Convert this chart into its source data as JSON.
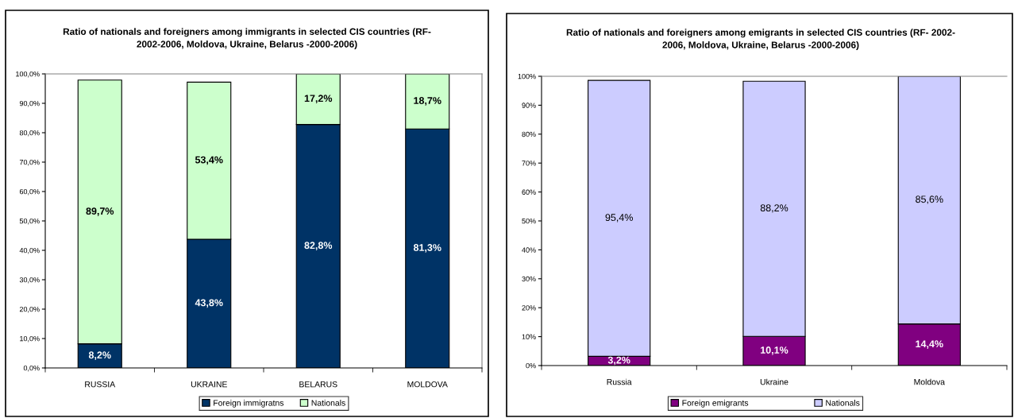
{
  "chart_data": [
    {
      "type": "bar",
      "title": "Ratio of nationals and foreigners among immigrants in selected CIS countries (RF-\n2002-2006, Moldova, Ukraine, Belarus -2000-2006)",
      "categories": [
        "RUSSIA",
        "UKRAINE",
        "BELARUS",
        "MOLDOVA"
      ],
      "stacked": true,
      "series": [
        {
          "name": "Foreign immigratns",
          "color": "#003366",
          "values": [
            8.2,
            43.8,
            82.8,
            81.3
          ],
          "value_labels": [
            "8,2%",
            "43,8%",
            "82,8%",
            "81,3%"
          ]
        },
        {
          "name": "Nationals",
          "color": "#ccffcc",
          "values": [
            89.7,
            53.4,
            17.2,
            18.7
          ],
          "value_labels": [
            "89,7%",
            "53,4%",
            "17,2%",
            "18,7%"
          ]
        }
      ],
      "ylim": [
        0,
        100
      ],
      "yticks": [
        {
          "value": 0,
          "label": "0,0%"
        },
        {
          "value": 10,
          "label": "10,0%"
        },
        {
          "value": 20,
          "label": "20,0%"
        },
        {
          "value": 30,
          "label": "30,0%"
        },
        {
          "value": 40,
          "label": "40,0%"
        },
        {
          "value": 50,
          "label": "50,0%"
        },
        {
          "value": 60,
          "label": "60,0%"
        },
        {
          "value": 70,
          "label": "70,0%"
        },
        {
          "value": 80,
          "label": "80,0%"
        },
        {
          "value": 90,
          "label": "90,0%"
        },
        {
          "value": 100,
          "label": "100,0%"
        }
      ],
      "grid": false,
      "legend": "bottom"
    },
    {
      "type": "bar",
      "title": "Ratio of nationals and foreigners among emigrants in selected CIS countries (RF- 2002-\n2006, Moldova, Ukraine, Belarus -2000-2006)",
      "categories": [
        "Russia",
        "Ukraine",
        "Moldova"
      ],
      "stacked": true,
      "series": [
        {
          "name": "Foreign emigrants",
          "color": "#800080",
          "values": [
            3.2,
            10.1,
            14.4
          ],
          "value_labels": [
            "3,2%",
            "10,1%",
            "14,4%"
          ]
        },
        {
          "name": "Nationals",
          "color": "#ccccff",
          "values": [
            95.4,
            88.2,
            85.6
          ],
          "value_labels": [
            "95,4%",
            "88,2%",
            "85,6%"
          ]
        }
      ],
      "ylim": [
        0,
        100
      ],
      "yticks": [
        {
          "value": 0,
          "label": "0%"
        },
        {
          "value": 10,
          "label": "10%"
        },
        {
          "value": 20,
          "label": "20%"
        },
        {
          "value": 30,
          "label": "30%"
        },
        {
          "value": 40,
          "label": "40%"
        },
        {
          "value": 50,
          "label": "50%"
        },
        {
          "value": 60,
          "label": "60%"
        },
        {
          "value": 70,
          "label": "70%"
        },
        {
          "value": 80,
          "label": "80%"
        },
        {
          "value": 90,
          "label": "90%"
        },
        {
          "value": 100,
          "label": "100%"
        }
      ],
      "grid": false,
      "legend": "bottom"
    }
  ]
}
